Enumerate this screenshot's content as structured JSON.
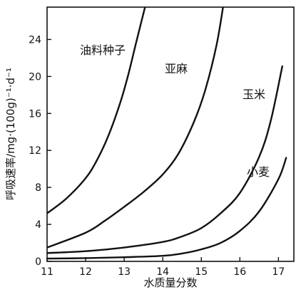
{
  "chart_data": {
    "type": "line",
    "xlabel": "水质量分数",
    "ylabel": "呼吸速率/mg·(100g)⁻¹·d⁻¹",
    "xlim": [
      11,
      17.4
    ],
    "ylim": [
      0,
      27.5
    ],
    "xticks": [
      "11",
      "12",
      "13",
      "14",
      "15",
      "16",
      "17"
    ],
    "yticks": [
      "0",
      "4",
      "8",
      "12",
      "16",
      "20",
      "24"
    ],
    "grid": false,
    "series": [
      {
        "name": "油料种子",
        "x": [
          11.0,
          11.5,
          12.0,
          12.3,
          12.6,
          12.9,
          13.1,
          13.3,
          13.45,
          13.6
        ],
        "y": [
          5.2,
          6.8,
          9.0,
          11.0,
          13.7,
          17.2,
          20.1,
          23.5,
          26.0,
          28.5
        ]
      },
      {
        "name": "亚麻",
        "x": [
          11.0,
          12.0,
          12.5,
          13.0,
          13.5,
          14.0,
          14.4,
          14.8,
          15.1,
          15.4,
          15.6
        ],
        "y": [
          1.5,
          3.1,
          4.4,
          5.9,
          7.5,
          9.4,
          11.6,
          15.0,
          18.5,
          23.5,
          28.5
        ]
      },
      {
        "name": "玉米",
        "x": [
          11.0,
          12.0,
          13.0,
          14.0,
          14.5,
          15.0,
          15.5,
          16.0,
          16.5,
          16.8,
          17.1
        ],
        "y": [
          0.9,
          1.1,
          1.5,
          2.1,
          2.7,
          3.6,
          5.2,
          7.4,
          11.3,
          15.2,
          21.1
        ]
      },
      {
        "name": "小麦",
        "x": [
          11.0,
          12.0,
          13.0,
          14.0,
          14.5,
          15.0,
          15.5,
          16.0,
          16.5,
          17.0,
          17.2
        ],
        "y": [
          0.3,
          0.35,
          0.45,
          0.6,
          0.85,
          1.3,
          2.0,
          3.3,
          5.4,
          8.9,
          11.2
        ]
      }
    ]
  }
}
